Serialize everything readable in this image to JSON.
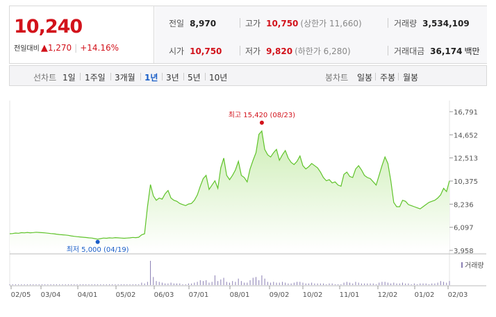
{
  "price": {
    "current": "10,240",
    "change_label": "전일대비",
    "change": "1,270",
    "change_pct": "+14.16%"
  },
  "stats": {
    "prev_label": "전일",
    "prev": "8,970",
    "high_label": "고가",
    "high": "10,750",
    "upper_label": "(상한가 11,660)",
    "volume_label": "거래량",
    "volume": "3,534,109",
    "open_label": "시가",
    "open": "10,750",
    "low_label": "저가",
    "low": "9,820",
    "lower_label": "(하한가 6,280)",
    "amount_label": "거래대금",
    "amount": "36,174",
    "amount_unit": "백만"
  },
  "line_chart_label": "선차트",
  "periods": [
    "1일",
    "1주일",
    "3개월",
    "1년",
    "3년",
    "5년",
    "10년"
  ],
  "active_period": "1년",
  "candle_chart_label": "봉차트",
  "candle_periods": [
    "일봉",
    "주봉",
    "월봉"
  ],
  "colors": {
    "up": "#d2121b",
    "down": "#1a5ec7",
    "line": "#5fc32a",
    "area_top": "#cdeeb5",
    "volume": "#8a7fb3"
  },
  "chart_data": {
    "type": "area",
    "x_ticks": [
      "02/05",
      "03/04",
      "04/01",
      "05/02",
      "06/03",
      "07/01",
      "08/01",
      "09/02",
      "10/02",
      "11/01",
      "12/02",
      "01/02",
      "02/03"
    ],
    "y_ticks": [
      "16,791",
      "14,652",
      "12,513",
      "10,375",
      "8,236",
      "6,097",
      "3,958"
    ],
    "ylim": [
      3958,
      16791
    ],
    "series": [
      {
        "values": [
          5500,
          5520,
          5560,
          5540,
          5600,
          5580,
          5620,
          5590,
          5610,
          5640,
          5620,
          5600,
          5580,
          5550,
          5520,
          5500,
          5460,
          5430,
          5400,
          5380,
          5350,
          5300,
          5260,
          5230,
          5200,
          5180,
          5150,
          5120,
          5100,
          5050,
          5000,
          5050,
          5100,
          5080,
          5120,
          5100,
          5140,
          5120,
          5100,
          5080,
          5100,
          5120,
          5160,
          5140,
          5180,
          5400,
          5500,
          8000,
          10050,
          9000,
          8600,
          8800,
          8700,
          9200,
          9500,
          8800,
          8600,
          8500,
          8300,
          8200,
          8100,
          8250,
          8300,
          8600,
          9100,
          9900,
          10600,
          10900,
          9600,
          10000,
          10400,
          9700,
          11600,
          12500,
          10900,
          10500,
          10900,
          11400,
          12200,
          10900,
          10700,
          10300,
          11500,
          12300,
          13000,
          14700,
          15000,
          13300,
          12800,
          12600,
          13000,
          13300,
          12300,
          12800,
          13200,
          12500,
          12100,
          11900,
          12200,
          12700,
          11800,
          11500,
          11700,
          12000,
          11800,
          11600,
          11200,
          10700,
          10400,
          10500,
          10200,
          10300,
          10000,
          9900,
          11000,
          11200,
          10800,
          10700,
          11500,
          11800,
          11400,
          10900,
          10700,
          10600,
          10300,
          10000,
          10900,
          11800,
          12600,
          12000,
          10400,
          8400,
          8000,
          8000,
          8600,
          8500,
          8200,
          8100,
          8000,
          7900,
          7800,
          8000,
          8200,
          8400,
          8500,
          8600,
          8800,
          9100,
          9700,
          9400,
          10400
        ]
      }
    ],
    "high": {
      "label": "최고",
      "value": "15,420",
      "date": "(08/23)"
    },
    "low": {
      "label": "최저",
      "value": "5,000",
      "date": "(04/19)"
    },
    "volume_label": "거래량",
    "volume_values": [
      1,
      1,
      1,
      1,
      1,
      1,
      1,
      1,
      1,
      1,
      1,
      1,
      1,
      1,
      1,
      1,
      1,
      1,
      1,
      1,
      1,
      1,
      1,
      1,
      1,
      1,
      1,
      1,
      1,
      1,
      1,
      1,
      1,
      1,
      1,
      1,
      1,
      1,
      1,
      1,
      1,
      1,
      1,
      1,
      1,
      3,
      2,
      4,
      30,
      10,
      5,
      4,
      3,
      2,
      2,
      3,
      2,
      2,
      2,
      1,
      1,
      2,
      2,
      3,
      4,
      6,
      5,
      6,
      3,
      4,
      12,
      5,
      7,
      9,
      4,
      3,
      5,
      4,
      8,
      5,
      3,
      3,
      6,
      9,
      10,
      6,
      12,
      8,
      4,
      3,
      4,
      3,
      3,
      4,
      3,
      2,
      2,
      3,
      4,
      4,
      3,
      2,
      2,
      3,
      2,
      2,
      2,
      2,
      1,
      2,
      2,
      1,
      1,
      1,
      3,
      4,
      3,
      2,
      4,
      3,
      2,
      2,
      2,
      2,
      2,
      1,
      3,
      4,
      4,
      3,
      2,
      3,
      2,
      2,
      3,
      2,
      2,
      1,
      2,
      1,
      2,
      2,
      2,
      1,
      2,
      2,
      3,
      5,
      4,
      3,
      5
    ]
  }
}
